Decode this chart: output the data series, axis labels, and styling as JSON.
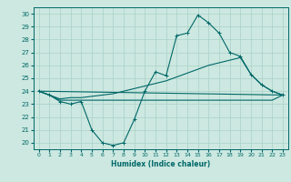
{
  "xlabel": "Humidex (Indice chaleur)",
  "xlim": [
    -0.5,
    23.5
  ],
  "ylim": [
    19.5,
    30.5
  ],
  "yticks": [
    20,
    21,
    22,
    23,
    24,
    25,
    26,
    27,
    28,
    29,
    30
  ],
  "xticks": [
    0,
    1,
    2,
    3,
    4,
    5,
    6,
    7,
    8,
    9,
    10,
    11,
    12,
    13,
    14,
    15,
    16,
    17,
    18,
    19,
    20,
    21,
    22,
    23
  ],
  "bg_color": "#cce8e0",
  "grid_color": "#aad0c8",
  "line_color": "#006868",
  "line1_x": [
    0,
    1,
    2,
    3,
    4,
    5,
    6,
    7,
    8,
    9,
    10,
    11,
    12,
    13,
    14,
    15,
    16,
    17,
    18,
    19,
    20,
    21,
    22,
    23
  ],
  "line1_y": [
    24.0,
    23.7,
    23.2,
    23.0,
    23.2,
    21.0,
    20.0,
    19.8,
    20.0,
    21.8,
    24.0,
    25.5,
    25.2,
    28.3,
    28.5,
    29.9,
    29.3,
    28.5,
    27.0,
    26.7,
    25.3,
    24.5,
    24.0,
    23.7
  ],
  "line2_x": [
    0,
    1,
    2,
    3,
    4,
    5,
    6,
    7,
    8,
    9,
    10,
    11,
    12,
    13,
    14,
    15,
    16,
    17,
    18,
    19,
    20,
    21,
    22,
    23
  ],
  "line2_y": [
    24.0,
    23.7,
    23.3,
    23.3,
    23.3,
    23.3,
    23.3,
    23.3,
    23.3,
    23.3,
    23.3,
    23.3,
    23.3,
    23.3,
    23.3,
    23.3,
    23.3,
    23.3,
    23.3,
    23.3,
    23.3,
    23.3,
    23.3,
    23.7
  ],
  "line3_x": [
    0,
    23
  ],
  "line3_y": [
    24.0,
    23.7
  ],
  "line4_x": [
    0,
    1,
    2,
    3,
    4,
    5,
    6,
    7,
    8,
    9,
    10,
    11,
    12,
    13,
    14,
    15,
    16,
    17,
    18,
    19,
    20,
    21,
    22,
    23
  ],
  "line4_y": [
    24.0,
    23.7,
    23.4,
    23.5,
    23.5,
    23.6,
    23.7,
    23.8,
    24.0,
    24.2,
    24.4,
    24.6,
    24.8,
    25.1,
    25.4,
    25.7,
    26.0,
    26.2,
    26.4,
    26.6,
    25.3,
    24.5,
    24.0,
    23.7
  ]
}
